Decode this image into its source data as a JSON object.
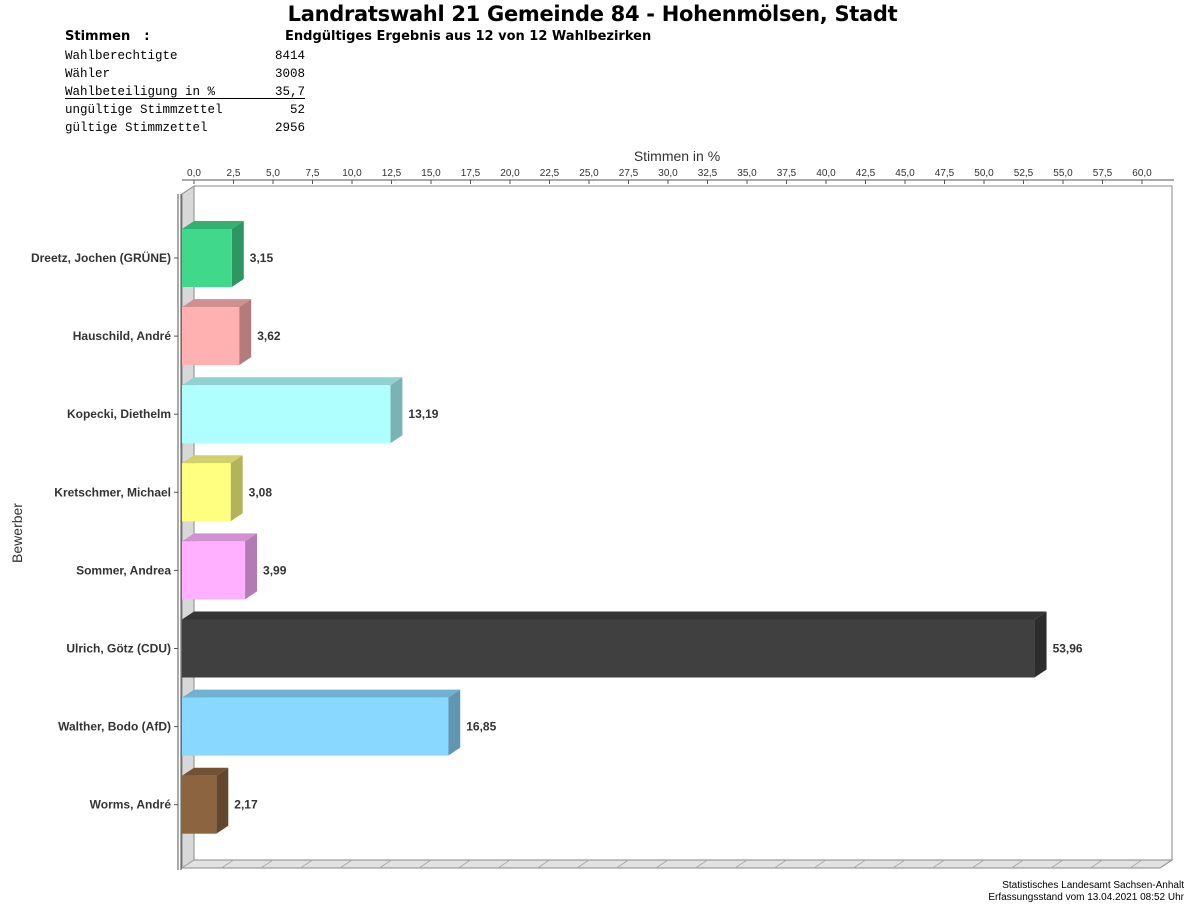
{
  "header": {
    "title": "Landratswahl 21 Gemeinde 84 - Hohenmölsen, Stadt",
    "stimmen_label": "Stimmen",
    "stimmen_colon": ":",
    "subtitle": "Endgültiges Ergebnis aus 12 von 12 Wahlbezirken"
  },
  "stats": [
    {
      "label": "Wahlberechtigte",
      "value": "8414"
    },
    {
      "label": "Wähler",
      "value": "3008"
    },
    {
      "label": "Wahlbeteiligung in %",
      "value": "35,7"
    },
    {
      "label": "ungültige Stimmzettel",
      "value": "52"
    },
    {
      "label": "gültige Stimmzettel",
      "value": "2956"
    }
  ],
  "chart_data": {
    "type": "bar",
    "orientation": "horizontal",
    "xlabel": "Stimmen in %",
    "ylabel": "Bewerber",
    "xlim": [
      0,
      60
    ],
    "x_ticks": [
      "0,0",
      "2,5",
      "5,0",
      "7,5",
      "10,0",
      "12,5",
      "15,0",
      "17,5",
      "20,0",
      "22,5",
      "25,0",
      "27,5",
      "30,0",
      "32,5",
      "35,0",
      "37,5",
      "40,0",
      "42,5",
      "45,0",
      "47,5",
      "50,0",
      "52,5",
      "55,0",
      "57,5",
      "60,0"
    ],
    "categories": [
      "Dreetz, Jochen (GRÜNE)",
      "Hauschild, André",
      "Kopecki, Diethelm",
      "Kretschmer, Michael",
      "Sommer, Andrea",
      "Ulrich, Götz (CDU)",
      "Walther, Bodo (AfD)",
      "Worms, André"
    ],
    "values": [
      3.15,
      3.62,
      13.19,
      3.08,
      3.99,
      53.96,
      16.85,
      2.17
    ],
    "value_labels": [
      "3,15",
      "3,62",
      "13,19",
      "3,08",
      "3,99",
      "53,96",
      "16,85",
      "2,17"
    ],
    "colors": [
      "#40D88A",
      "#FFB0B0",
      "#B0FFFF",
      "#FFFF80",
      "#FFB0FF",
      "#404040",
      "#88D8FF",
      "#8C6440"
    ]
  },
  "footer": {
    "source": "Statistisches Landesamt Sachsen-Anhalt",
    "timestamp": "Erfassungsstand vom 13.04.2021 08:52 Uhr"
  }
}
